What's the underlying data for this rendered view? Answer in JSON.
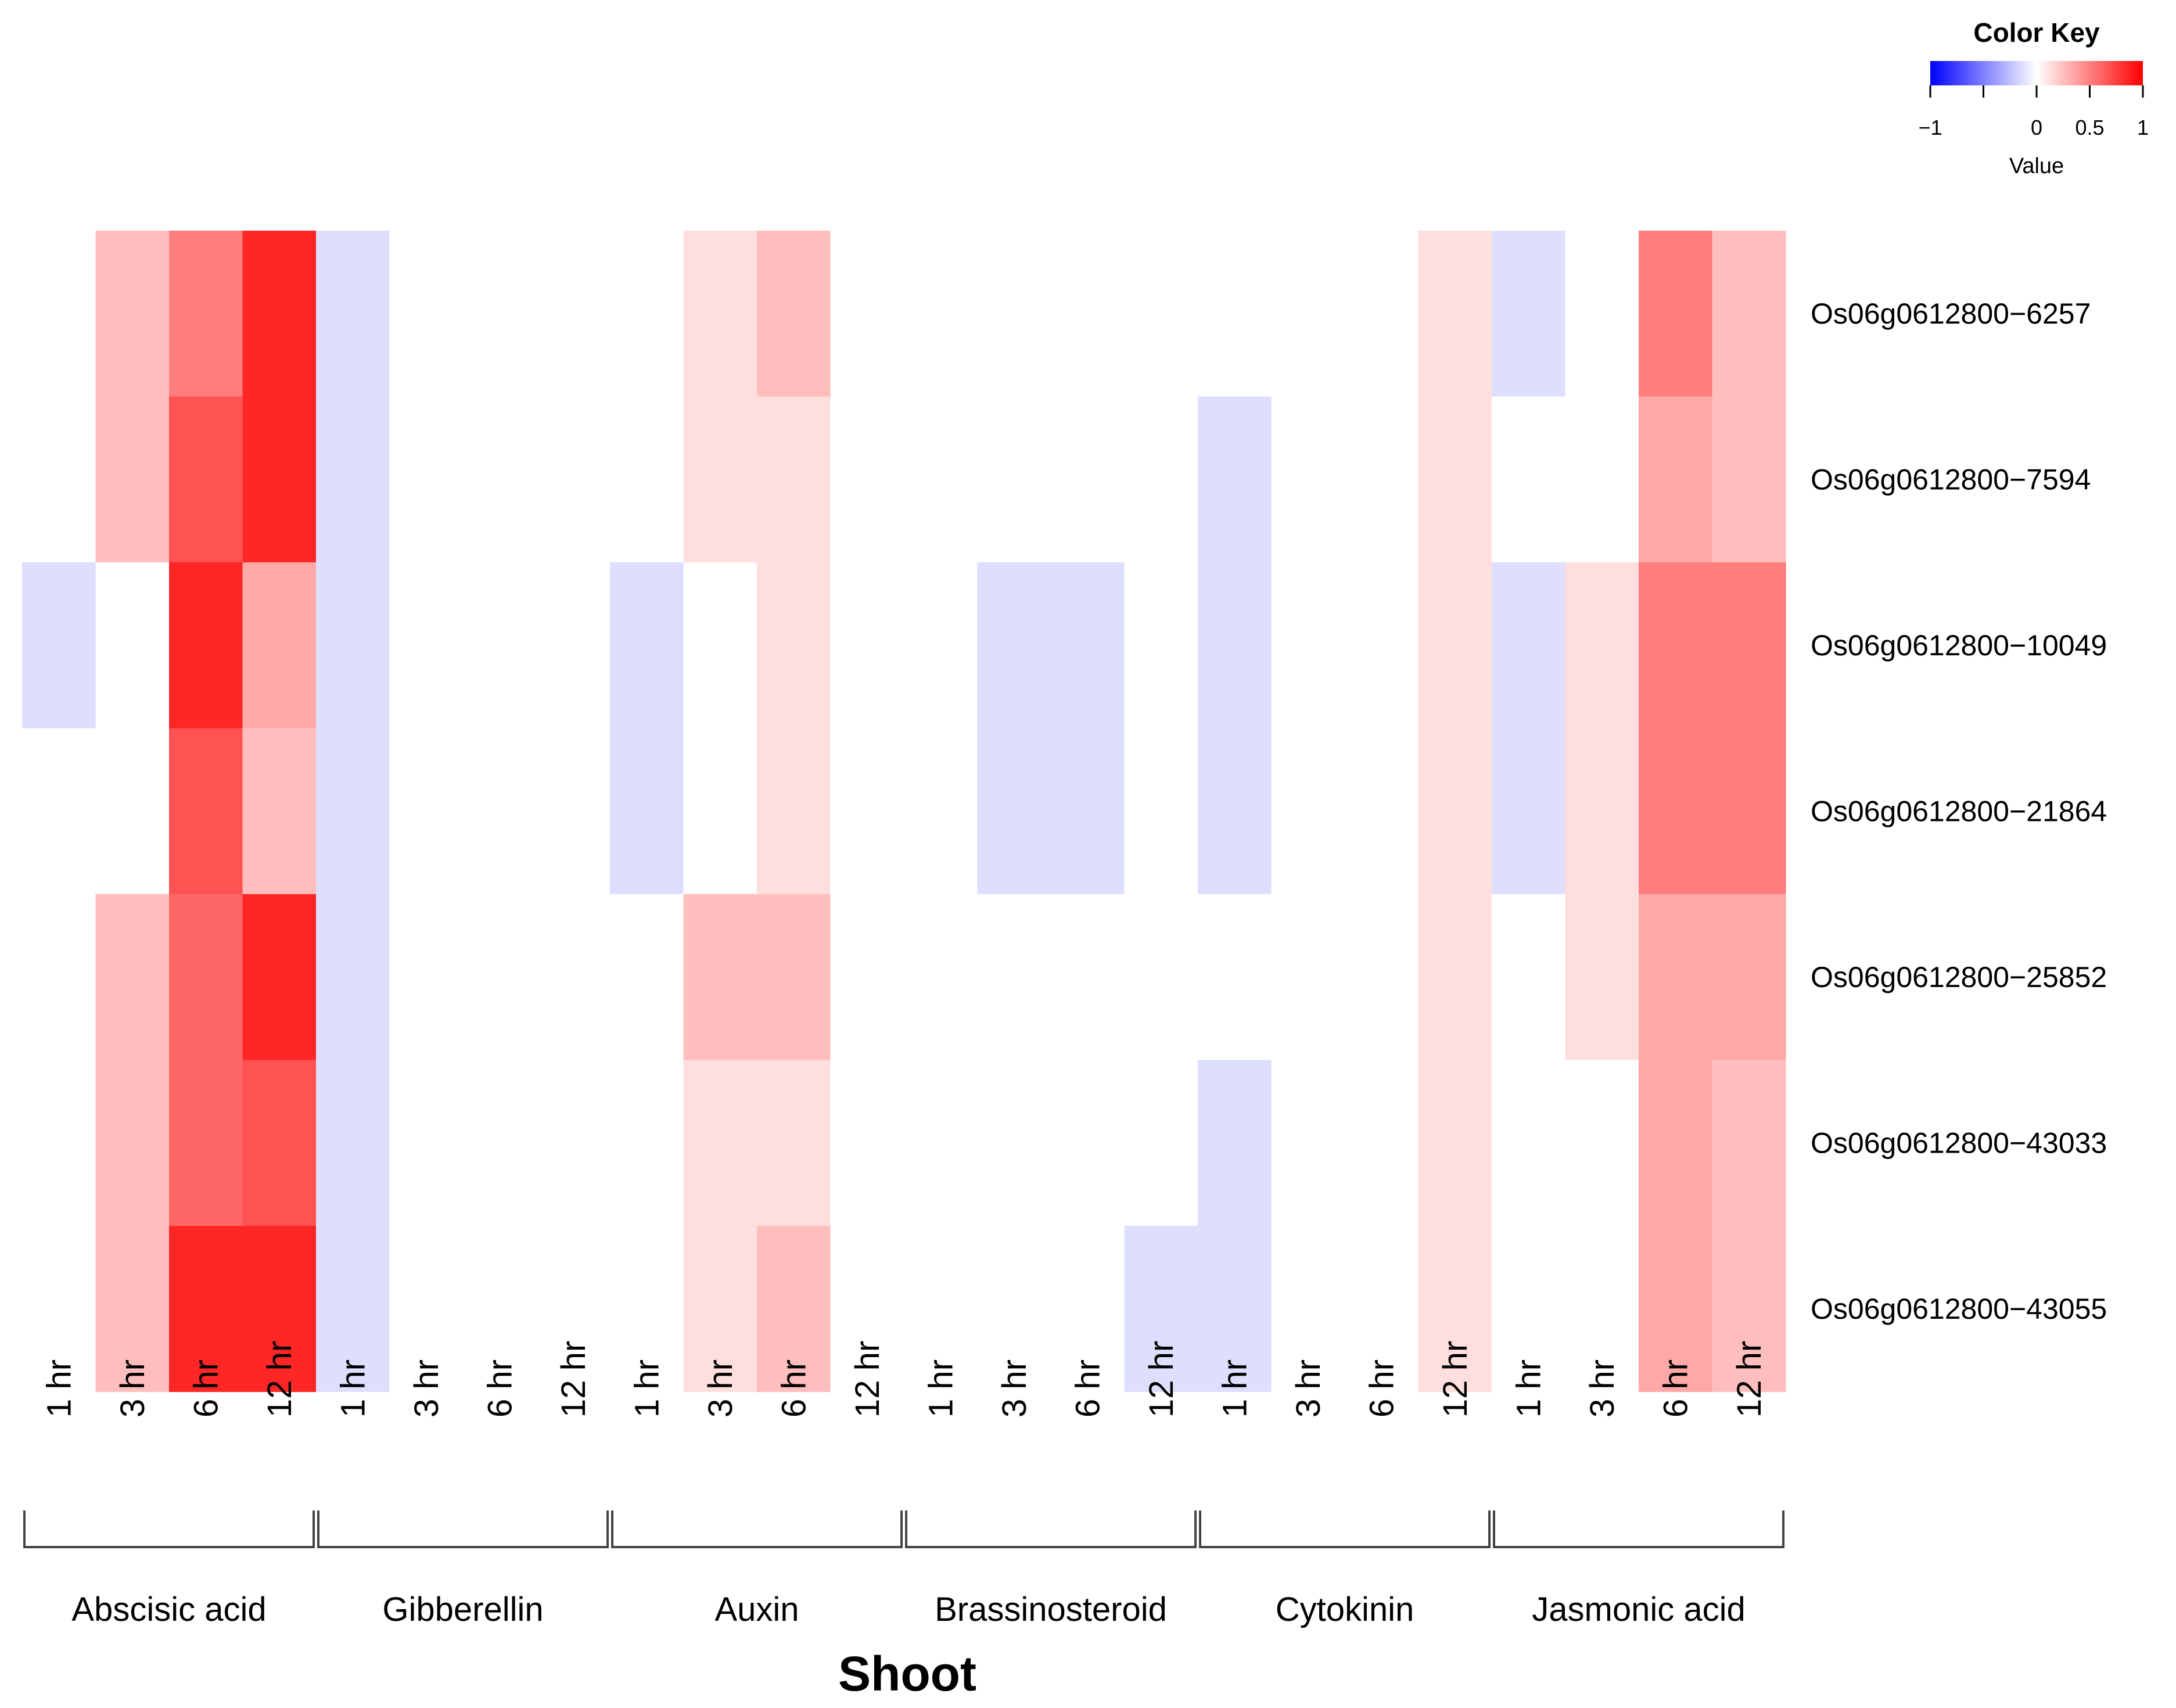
{
  "chart_data": {
    "type": "heatmap",
    "title": "",
    "xlabel": "Shoot",
    "groups": [
      "Abscisic acid",
      "Gibberellin",
      "Auxin",
      "Brassinosteroid",
      "Cytokinin",
      "Jasmonic acid"
    ],
    "timepoints": [
      "1 hr",
      "3 hr",
      "6 hr",
      "12 hr"
    ],
    "columns": [
      "1 hr",
      "3 hr",
      "6 hr",
      "12 hr",
      "1 hr",
      "3 hr",
      "6 hr",
      "12 hr",
      "1 hr",
      "3 hr",
      "6 hr",
      "12 hr",
      "1 hr",
      "3 hr",
      "6 hr",
      "12 hr",
      "1 hr",
      "3 hr",
      "6 hr",
      "12 hr",
      "1 hr",
      "3 hr",
      "6 hr",
      "12 hr"
    ],
    "rows": [
      "Os06g0612800−6257",
      "Os06g0612800−7594",
      "Os06g0612800−10049",
      "Os06g0612800−21864",
      "Os06g0612800−25852",
      "Os06g0612800−43033",
      "Os06g0612800−43055"
    ],
    "values": [
      [
        0,
        0.3,
        0.6,
        1.0,
        -0.15,
        0,
        0,
        0,
        0,
        0.15,
        0.3,
        0,
        0,
        0,
        0,
        0,
        0,
        0,
        0,
        0.15,
        -0.15,
        0,
        0.6,
        0.3
      ],
      [
        0,
        0.3,
        0.8,
        1.0,
        -0.15,
        0,
        0,
        0,
        0,
        0.15,
        0.15,
        0,
        0,
        0,
        0,
        0,
        -0.15,
        0,
        0,
        0.15,
        0,
        0,
        0.4,
        0.3
      ],
      [
        -0.15,
        0,
        1.0,
        0.4,
        -0.15,
        0,
        0,
        0,
        -0.15,
        0,
        0.15,
        0,
        0,
        -0.15,
        -0.15,
        0,
        -0.15,
        0,
        0,
        0.15,
        -0.15,
        0.15,
        0.6,
        0.6
      ],
      [
        0,
        0,
        0.8,
        0.3,
        -0.15,
        0,
        0,
        0,
        -0.15,
        0,
        0.15,
        0,
        0,
        -0.15,
        -0.15,
        0,
        -0.15,
        0,
        0,
        0.15,
        -0.15,
        0.15,
        0.6,
        0.6
      ],
      [
        0,
        0.3,
        0.7,
        1.0,
        -0.15,
        0,
        0,
        0,
        0,
        0.3,
        0.3,
        0,
        0,
        0,
        0,
        0,
        0,
        0,
        0,
        0.15,
        0,
        0.15,
        0.4,
        0.4
      ],
      [
        0,
        0.3,
        0.7,
        0.8,
        -0.15,
        0,
        0,
        0,
        0,
        0.15,
        0.15,
        0,
        0,
        0,
        0,
        0,
        -0.15,
        0,
        0,
        0.15,
        0,
        0,
        0.4,
        0.3
      ],
      [
        0,
        0.3,
        1.0,
        1.0,
        -0.15,
        0,
        0,
        0,
        0,
        0.15,
        0.3,
        0,
        0,
        0,
        0,
        -0.15,
        -0.15,
        0,
        0,
        0.15,
        0,
        0,
        0.4,
        0.3
      ]
    ],
    "color_scale": {
      "min": -1,
      "max": 1,
      "low": "#0000ff",
      "mid": "#ffffff",
      "high": "#ff0000"
    },
    "color_key": {
      "title": "Color Key",
      "xlabel": "Value",
      "ticks": [
        -1,
        -0.5,
        0,
        0.5,
        1
      ],
      "tick_labels": [
        "−1",
        "",
        "0",
        "0.5",
        "1"
      ]
    }
  }
}
